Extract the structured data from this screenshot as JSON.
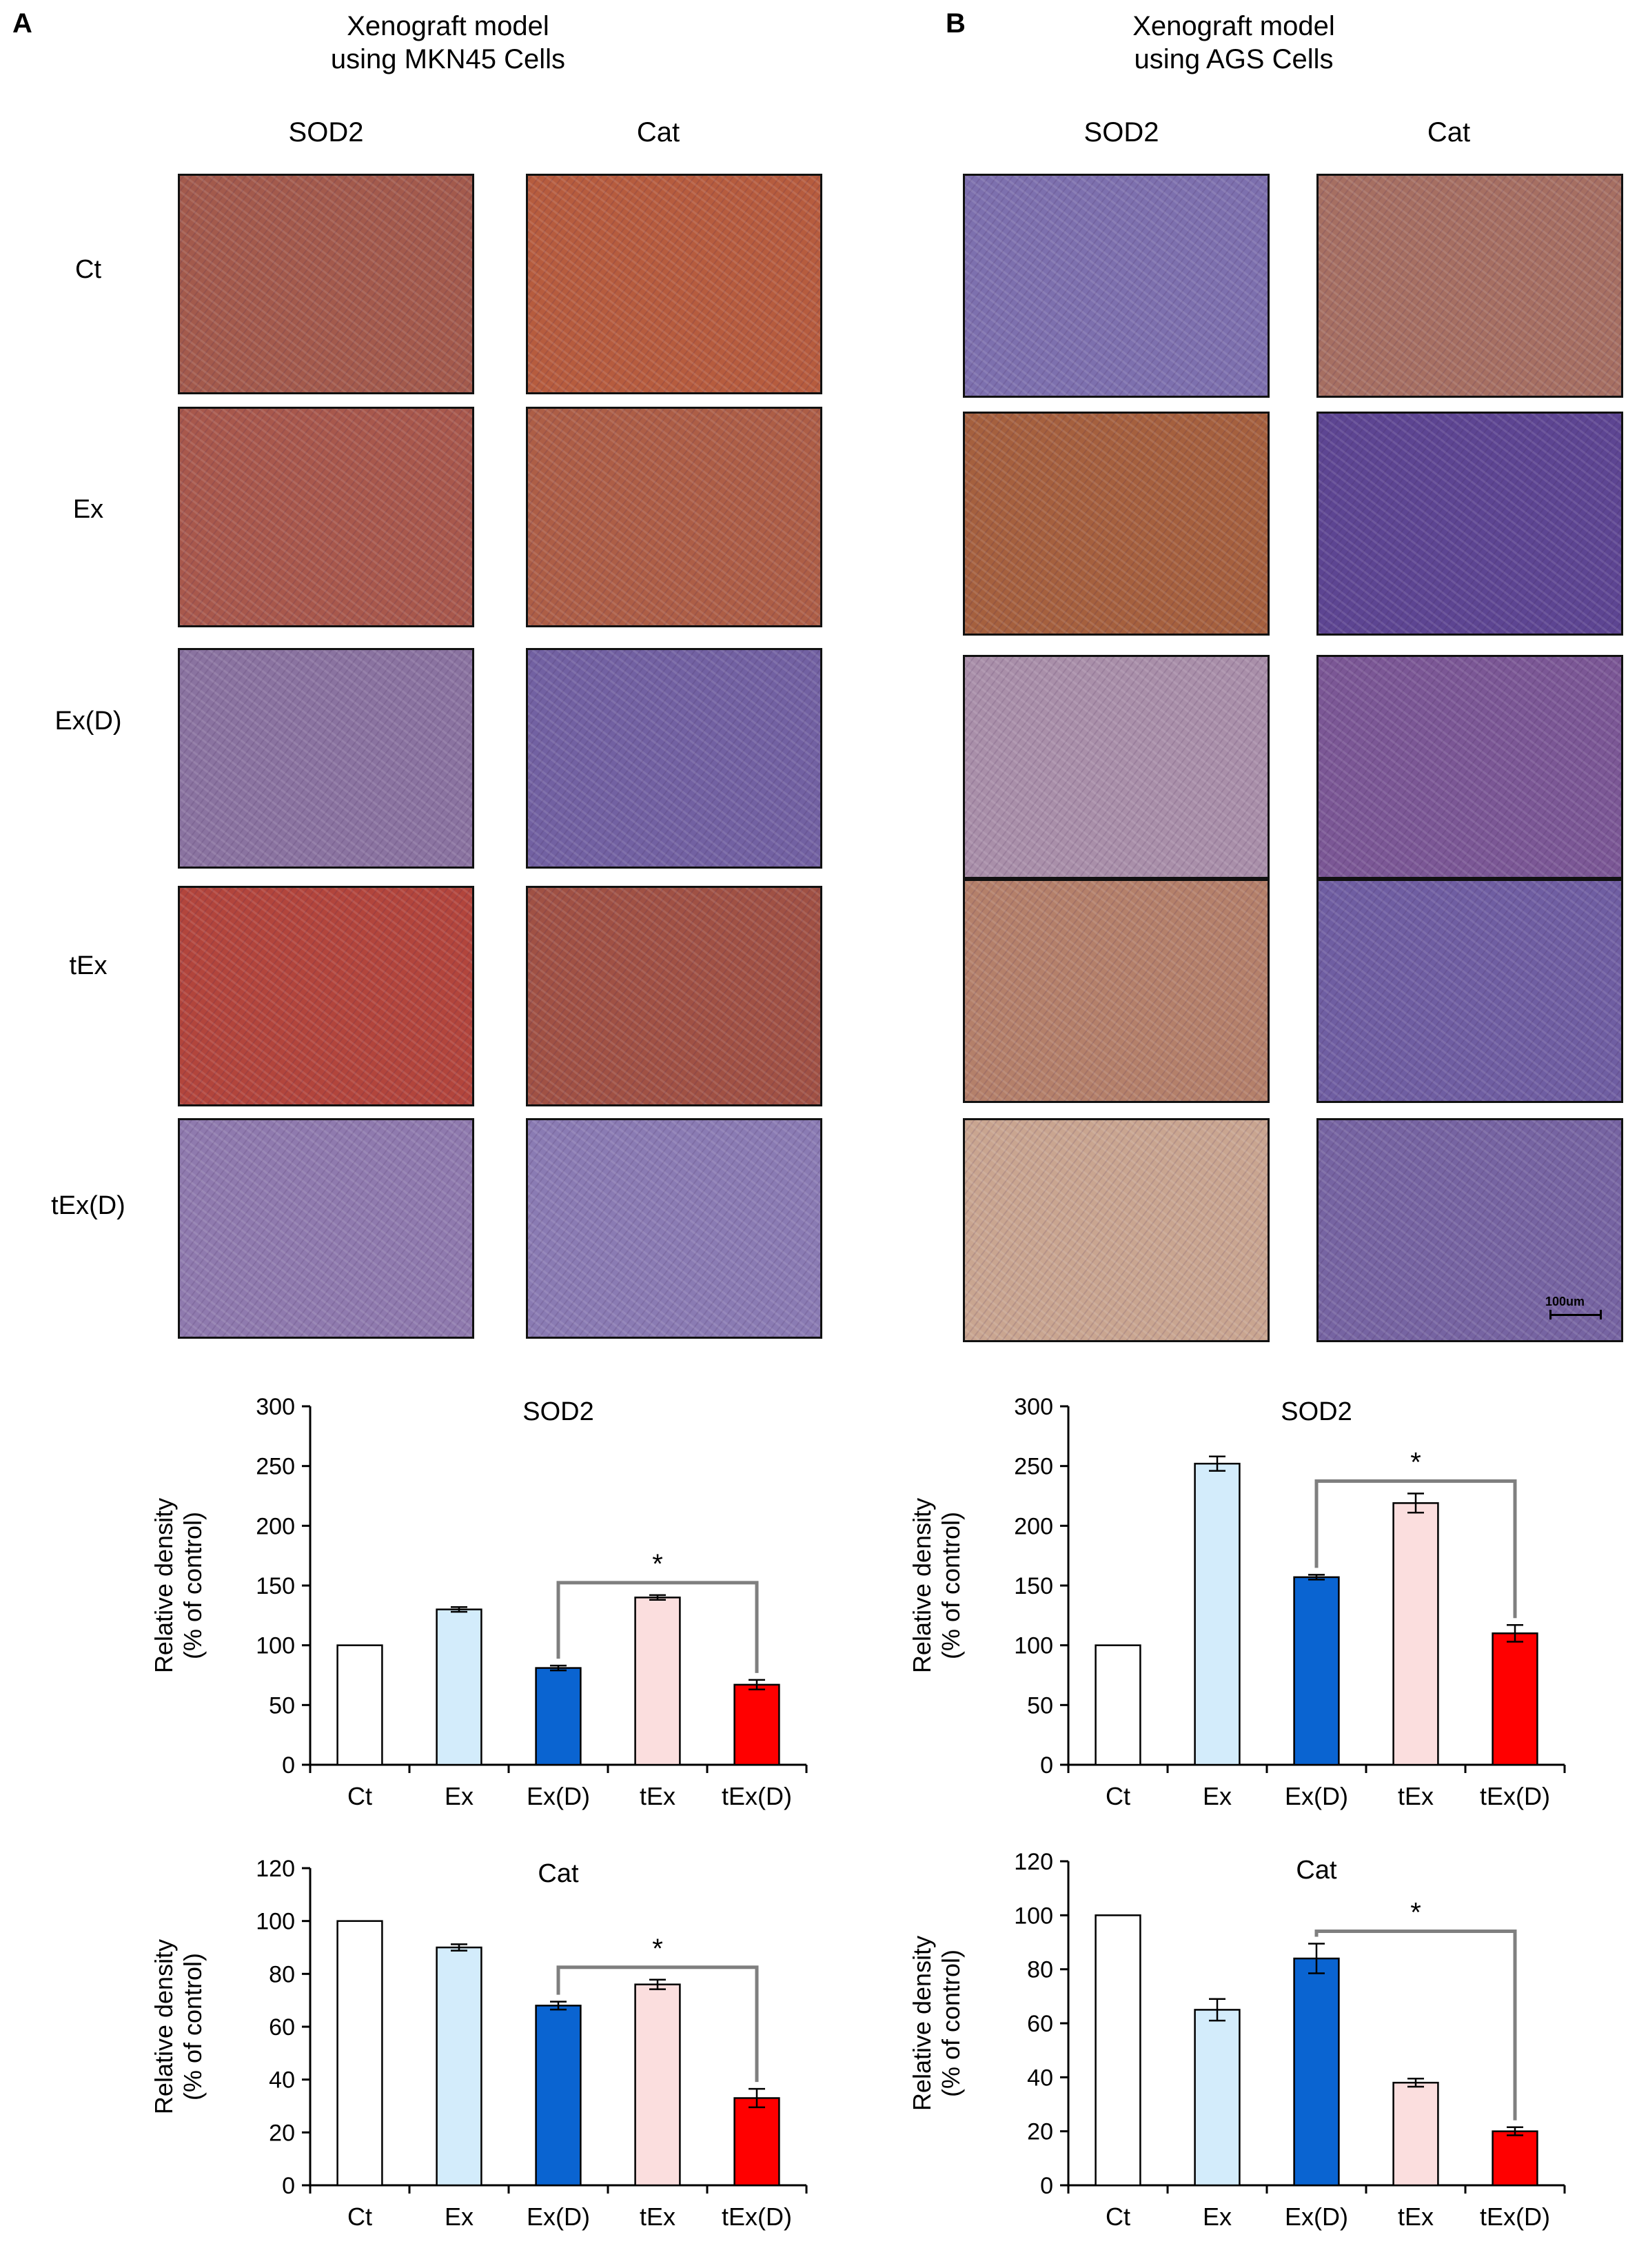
{
  "panels": [
    {
      "letter": "A",
      "title_line1": "Xenograft model",
      "title_line2": "using MKN45 Cells",
      "col_headers": [
        "SOD2",
        "Cat"
      ],
      "row_labels": [
        "Ct",
        "Ex",
        "Ex(D)",
        "tEx",
        "tEx(D)"
      ],
      "stain_colors": {
        "sod2": [
          "#a35a4c",
          "#a8584c",
          "#8a73a0",
          "#b2453c",
          "#8f7aae"
        ],
        "cat": [
          "#b65c3e",
          "#ad5e46",
          "#7261a2",
          "#a05144",
          "#8a7bb3"
        ]
      }
    },
    {
      "letter": "B",
      "title_line1": "Xenograft model",
      "title_line2": "using AGS Cells",
      "col_headers": [
        "SOD2",
        "Cat"
      ],
      "scale_bar_label": "100um",
      "stain_colors": {
        "sod2": [
          "#7d70ae",
          "#a5603e",
          "#a98fa9",
          "#b4806a",
          "#c9a590"
        ],
        "cat": [
          "#a66f62",
          "#5d4592",
          "#7b5795",
          "#6f5ea2",
          "#7664a2"
        ]
      }
    }
  ],
  "colors": {
    "ct": "#ffffff",
    "ex": "#d3ecfb",
    "exd": "#0a64d1",
    "tex": "#fbdede",
    "texd": "#ff0000",
    "bracket": "#7f7f7f"
  },
  "chart_data": [
    {
      "type": "bar",
      "panel": "A",
      "title": "SOD2",
      "ylabel_line1": "Relative density",
      "ylabel_line2": "(% of control)",
      "categories": [
        "Ct",
        "Ex",
        "Ex(D)",
        "tEx",
        "tEx(D)"
      ],
      "values": [
        100,
        130,
        81,
        140,
        67
      ],
      "errors": [
        0,
        2,
        2,
        2,
        4
      ],
      "ylim": [
        0,
        300
      ],
      "yticks": [
        0,
        50,
        100,
        150,
        200,
        250,
        300
      ],
      "significance": {
        "from": "Ex(D)",
        "to": "tEx(D)",
        "label": "*"
      }
    },
    {
      "type": "bar",
      "panel": "A",
      "title": "Cat",
      "ylabel_line1": "Relative density",
      "ylabel_line2": "(% of control)",
      "categories": [
        "Ct",
        "Ex",
        "Ex(D)",
        "tEx",
        "tEx(D)"
      ],
      "values": [
        100,
        90,
        68,
        76,
        33
      ],
      "errors": [
        0,
        1.2,
        1.5,
        1.8,
        3.5
      ],
      "ylim": [
        0,
        120
      ],
      "yticks": [
        0,
        20,
        40,
        60,
        80,
        100,
        120
      ],
      "significance": {
        "from": "Ex(D)",
        "to": "tEx(D)",
        "label": "*"
      }
    },
    {
      "type": "bar",
      "panel": "B",
      "title": "SOD2",
      "ylabel_line1": "Relative density",
      "ylabel_line2": "(% of control)",
      "categories": [
        "Ct",
        "Ex",
        "Ex(D)",
        "tEx",
        "tEx(D)"
      ],
      "values": [
        100,
        252,
        157,
        219,
        110
      ],
      "errors": [
        0,
        6,
        2,
        8,
        7
      ],
      "ylim": [
        0,
        300
      ],
      "yticks": [
        0,
        50,
        100,
        150,
        200,
        250,
        300
      ],
      "significance": {
        "from": "Ex(D)",
        "to": "tEx(D)",
        "label": "*"
      }
    },
    {
      "type": "bar",
      "panel": "B",
      "title": "Cat",
      "ylabel_line1": "Relative density",
      "ylabel_line2": "(% of control)",
      "categories": [
        "Ct",
        "Ex",
        "Ex(D)",
        "tEx",
        "tEx(D)"
      ],
      "values": [
        100,
        65,
        84,
        38,
        20
      ],
      "errors": [
        0,
        4,
        5.5,
        1.5,
        1.5
      ],
      "ylim": [
        0,
        120
      ],
      "yticks": [
        0,
        20,
        40,
        60,
        80,
        100,
        120
      ],
      "significance": {
        "from": "Ex(D)",
        "to": "tEx(D)",
        "label": "*"
      }
    }
  ]
}
